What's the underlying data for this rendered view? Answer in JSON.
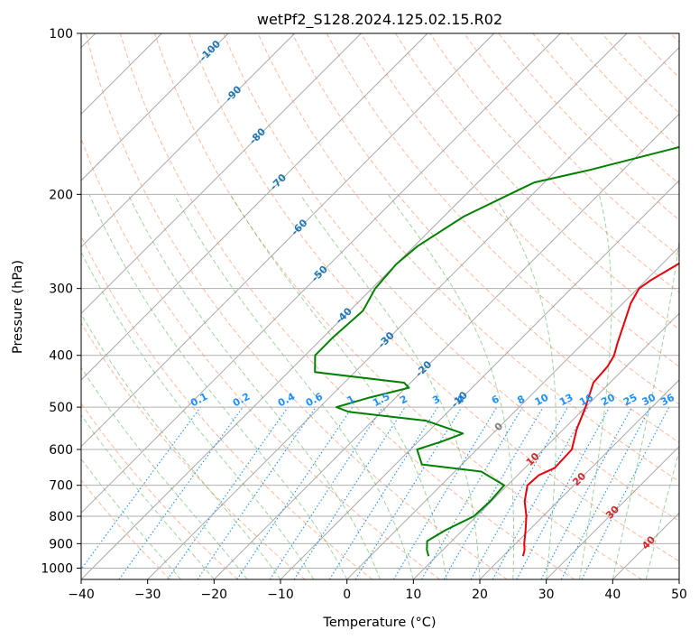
{
  "chart_data": {
    "type": "line",
    "title": "wetPf2_S128.2024.125.02.15.R02",
    "xlabel": "Temperature (°C)",
    "ylabel": "Pressure (hPa)",
    "xlim": [
      -40,
      50
    ],
    "ylim": [
      1050,
      100
    ],
    "y_scale": "log",
    "x_ticks": [
      "−40",
      "−30",
      "−20",
      "−10",
      "0",
      "10",
      "20",
      "30",
      "40",
      "50"
    ],
    "y_ticks": [
      "100",
      "200",
      "300",
      "400",
      "500",
      "600",
      "700",
      "800",
      "900",
      "1000"
    ],
    "grid": true,
    "colors": {
      "temperature": "#e8000b",
      "dewpoint": "#008000",
      "isotherm_label": "#1f77b4",
      "mixing_ratio_label": "#1e90ff",
      "moist_adiabat_label": "#d62728",
      "zero_label": "#808080",
      "dry_adiabat": "#ff7f50",
      "moist_adiabat": "#2ca02c",
      "mixing_line": "#1e90ff"
    },
    "series": [
      {
        "role": "temperature",
        "pressure": [
          950,
          925,
          900,
          850,
          800,
          750,
          700,
          670,
          650,
          600,
          550,
          500,
          450,
          420,
          400,
          380,
          350,
          320,
          300,
          290,
          270,
          250,
          230,
          210,
          190,
          170,
          150,
          140,
          130,
          120,
          110,
          100
        ],
        "values": [
          23,
          22.3,
          21.3,
          19.5,
          17.5,
          15,
          13,
          13.2,
          14.5,
          14.3,
          12,
          10,
          7.5,
          7.2,
          6.5,
          5.2,
          3.3,
          1.2,
          0.2,
          0.7,
          2.4,
          4.3,
          5.6,
          7,
          7.5,
          8.2,
          8.7,
          9.2,
          10,
          12,
          14.5,
          16
        ]
      },
      {
        "role": "dewpoint",
        "pressure": [
          950,
          925,
          890,
          850,
          800,
          750,
          700,
          660,
          640,
          600,
          580,
          560,
          530,
          510,
          500,
          480,
          460,
          450,
          430,
          400,
          370,
          330,
          300,
          270,
          250,
          220,
          195,
          190,
          180,
          160,
          140,
          120,
          110,
          100
        ],
        "values": [
          8.8,
          7.6,
          6.3,
          7.4,
          9.6,
          9.8,
          9.5,
          4,
          -6,
          -9,
          -6.5,
          -4.5,
          -12,
          -25,
          -27.5,
          -24,
          -19.5,
          -21,
          -36,
          -38.5,
          -38.5,
          -38,
          -39.5,
          -40,
          -39.5,
          -37,
          -32.5,
          -31.5,
          -25,
          -13,
          -9.5,
          -1.5,
          -1.2,
          1
        ]
      }
    ],
    "isotherm_labels": [
      "-100",
      "-90",
      "-80",
      "-70",
      "-60",
      "-50",
      "-40",
      "-30",
      "-20",
      "-10",
      "0",
      "10",
      "20",
      "30",
      "40"
    ],
    "isotherm_label_values": [
      -100,
      -90,
      -80,
      -70,
      -60,
      -50,
      -40,
      -30,
      -20,
      -10,
      0,
      10,
      20,
      30,
      40
    ],
    "isotherm_label_pressures": [
      108,
      130,
      156,
      190,
      231,
      282,
      338,
      375,
      425,
      485,
      545,
      627,
      683,
      788,
      898
    ],
    "isotherm_label_colors": [
      "#1f77b4",
      "#1f77b4",
      "#1f77b4",
      "#1f77b4",
      "#1f77b4",
      "#1f77b4",
      "#1f77b4",
      "#1f77b4",
      "#1f77b4",
      "#1f77b4",
      "#808080",
      "#d62728",
      "#d62728",
      "#d62728",
      "#d62728"
    ],
    "mixing_ratio_labels": [
      "0.1",
      "0.2",
      "0.4",
      "0.6",
      "1",
      "1.5",
      "2",
      "3",
      "4",
      "6",
      "8",
      "10",
      "13",
      "16",
      "20",
      "25",
      "30",
      "36"
    ],
    "mixing_ratio_values": [
      0.1,
      0.2,
      0.4,
      0.6,
      1,
      1.5,
      2,
      3,
      4,
      6,
      8,
      10,
      13,
      16,
      20,
      25,
      30,
      36
    ]
  }
}
